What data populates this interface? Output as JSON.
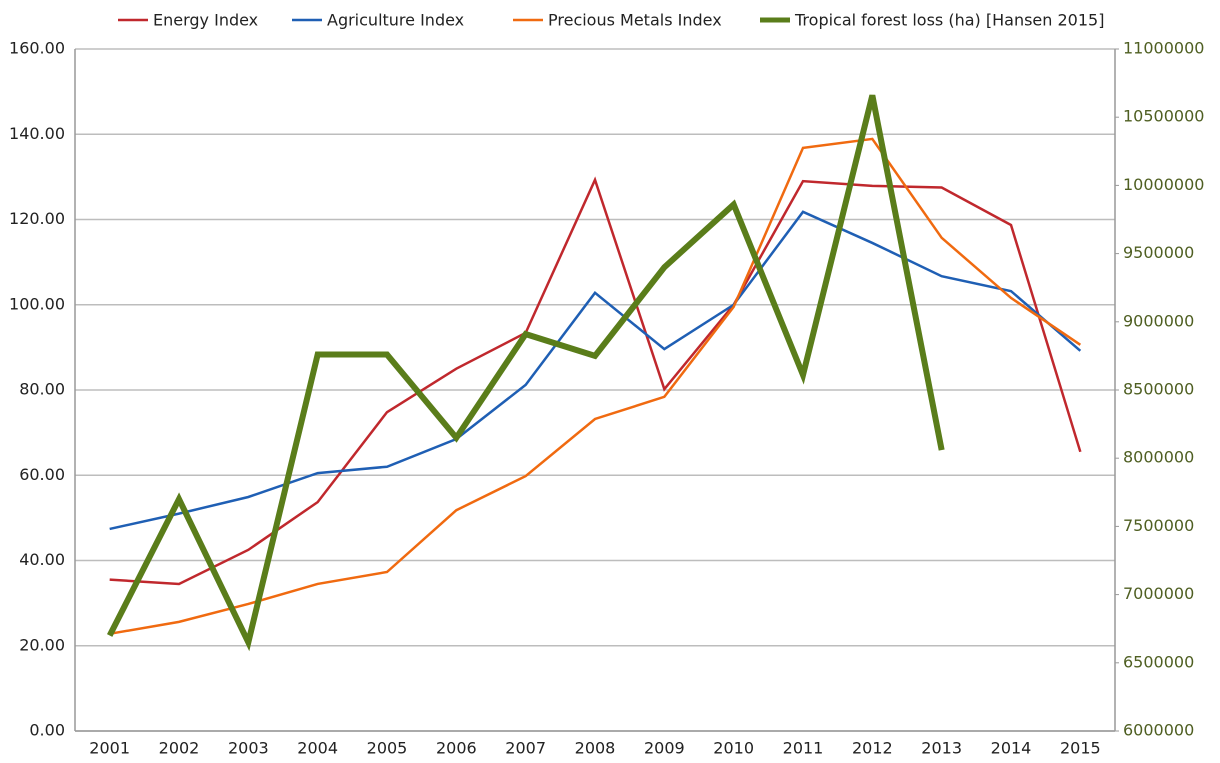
{
  "chart_data": {
    "type": "line",
    "categories": [
      "2001",
      "2002",
      "2003",
      "2004",
      "2005",
      "2006",
      "2007",
      "2008",
      "2009",
      "2010",
      "2011",
      "2012",
      "2013",
      "2014",
      "2015"
    ],
    "series": [
      {
        "name": "Energy Index",
        "color": "#c0282d",
        "values": [
          35.5,
          34.5,
          42.5,
          53.7,
          74.8,
          85,
          93.4,
          129.3,
          80.2,
          100,
          129,
          127.9,
          127.5,
          118.7,
          65.5
        ]
      },
      {
        "name": "Agriculture  Index",
        "color": "#1f5fb4",
        "values": [
          47.4,
          51,
          54.9,
          60.5,
          62,
          68.5,
          81.2,
          102.8,
          89.6,
          100,
          121.8,
          114.5,
          106.7,
          103.2,
          89.2
        ]
      },
      {
        "name": "Precious Metals Index",
        "color": "#f06a10",
        "values": [
          22.8,
          25.6,
          29.8,
          34.5,
          37.3,
          51.8,
          59.8,
          73.2,
          78.4,
          99.5,
          136.8,
          138.9,
          115.7,
          101.6,
          90.6
        ]
      },
      {
        "name": "Tropical forest loss (ha) [Hansen 2015]",
        "color": "#5a7d1a",
        "axis": "y2",
        "values": [
          6700000,
          7700000,
          6650000,
          8760000,
          8760000,
          8150000,
          8910000,
          8750000,
          9400000,
          9860000,
          8610000,
          10660000,
          8060000,
          null,
          null
        ]
      }
    ],
    "ylim": [
      0,
      160
    ],
    "yticks": [
      {
        "value": 0,
        "label": "0.00"
      },
      {
        "value": 20,
        "label": "20.00"
      },
      {
        "value": 40,
        "label": "40.00"
      },
      {
        "value": 60,
        "label": "60.00"
      },
      {
        "value": 80,
        "label": "80.00"
      },
      {
        "value": 100,
        "label": "100.00"
      },
      {
        "value": 120,
        "label": "120.00"
      },
      {
        "value": 140,
        "label": "140.00"
      },
      {
        "value": 160,
        "label": "160.00"
      }
    ],
    "y2lim": [
      6000000,
      11000000
    ],
    "y2ticks": [
      6000000,
      6500000,
      7000000,
      7500000,
      8000000,
      8500000,
      9000000,
      9500000,
      10000000,
      10500000,
      11000000
    ],
    "grid": true,
    "legend": "top"
  }
}
